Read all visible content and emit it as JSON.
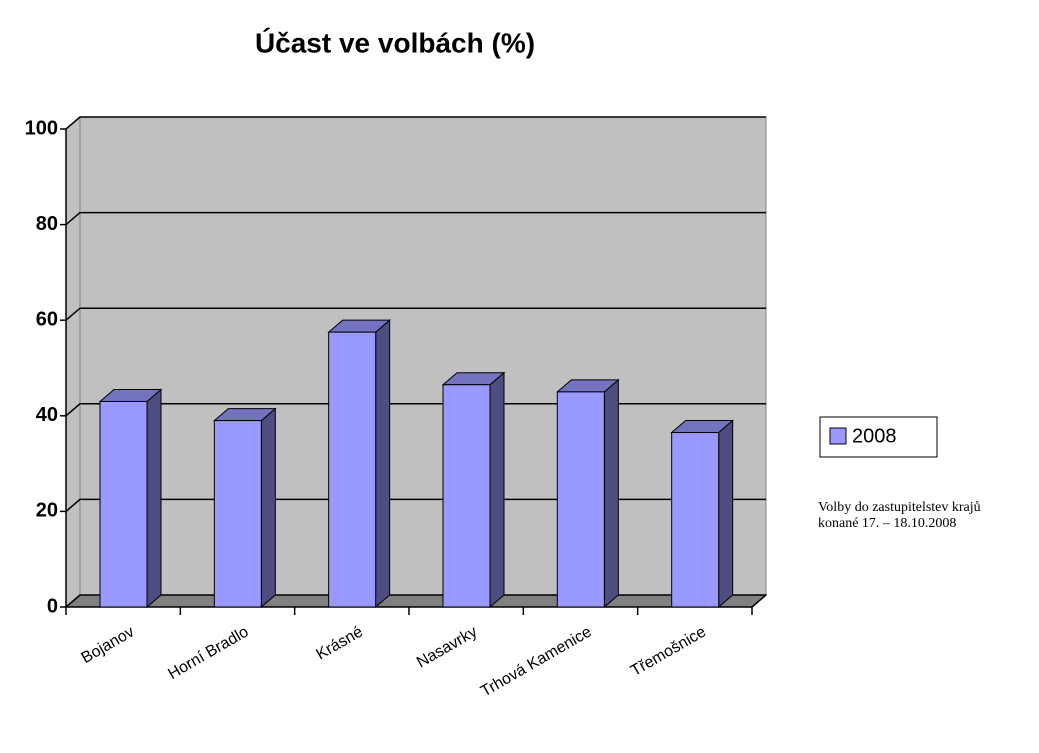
{
  "chart_data": {
    "type": "bar3d",
    "title": "Účast ve volbách (%)",
    "categories": [
      "Bojanov",
      "Horní Bradlo",
      "Krásné",
      "Nasavrky",
      "Trhová Kamenice",
      "Třemošnice"
    ],
    "series": [
      {
        "name": "2008",
        "color": "#9999ff",
        "values": [
          43,
          39,
          57.5,
          46.5,
          45,
          36.5
        ]
      }
    ],
    "ylim": [
      0,
      100
    ],
    "yticks": [
      0,
      20,
      40,
      60,
      80,
      100
    ],
    "grid": true,
    "legend": "right",
    "note": "Volby do zastupitelstev krajů konané 17. – 18.10.2008"
  }
}
